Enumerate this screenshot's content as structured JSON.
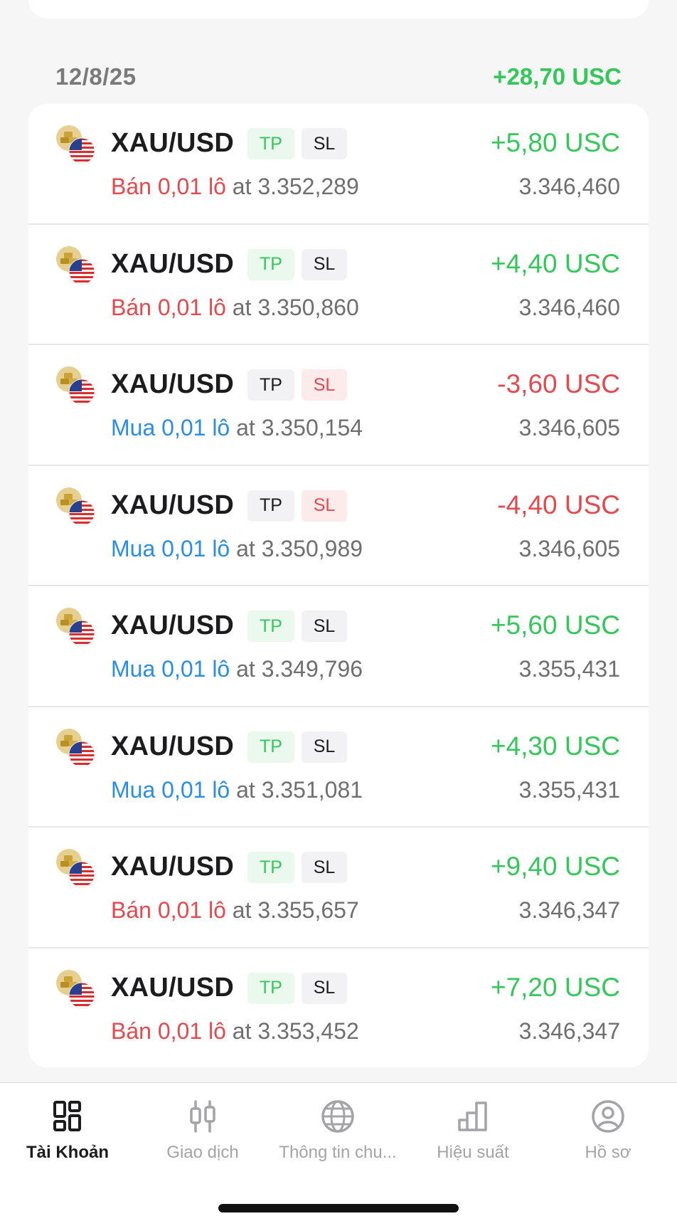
{
  "section": {
    "date": "12/8/25",
    "total": "+28,70 USC"
  },
  "colors": {
    "profit": "#34c759",
    "loss": "#e5484d",
    "sell": "#e5484d",
    "buy": "#2a8ee6",
    "muted": "#6f6f6f"
  },
  "orders": [
    {
      "symbol": "XAU/USD",
      "tp": "TP",
      "sl": "SL",
      "tp_state": "on",
      "sl_state": "off",
      "side": "Bán 0,01 lô",
      "side_type": "sell",
      "at": "at 3.352,289",
      "pnl": "+5,80 USC",
      "pnl_sign": "pos",
      "price": "3.346,460"
    },
    {
      "symbol": "XAU/USD",
      "tp": "TP",
      "sl": "SL",
      "tp_state": "on",
      "sl_state": "off",
      "side": "Bán 0,01 lô",
      "side_type": "sell",
      "at": "at 3.350,860",
      "pnl": "+4,40 USC",
      "pnl_sign": "pos",
      "price": "3.346,460"
    },
    {
      "symbol": "XAU/USD",
      "tp": "TP",
      "sl": "SL",
      "tp_state": "off",
      "sl_state": "on",
      "side": "Mua 0,01 lô",
      "side_type": "buy",
      "at": "at 3.350,154",
      "pnl": "-3,60 USC",
      "pnl_sign": "neg",
      "price": "3.346,605"
    },
    {
      "symbol": "XAU/USD",
      "tp": "TP",
      "sl": "SL",
      "tp_state": "off",
      "sl_state": "on",
      "side": "Mua 0,01 lô",
      "side_type": "buy",
      "at": "at 3.350,989",
      "pnl": "-4,40 USC",
      "pnl_sign": "neg",
      "price": "3.346,605"
    },
    {
      "symbol": "XAU/USD",
      "tp": "TP",
      "sl": "SL",
      "tp_state": "on",
      "sl_state": "off",
      "side": "Mua 0,01 lô",
      "side_type": "buy",
      "at": "at 3.349,796",
      "pnl": "+5,60 USC",
      "pnl_sign": "pos",
      "price": "3.355,431"
    },
    {
      "symbol": "XAU/USD",
      "tp": "TP",
      "sl": "SL",
      "tp_state": "on",
      "sl_state": "off",
      "side": "Mua 0,01 lô",
      "side_type": "buy",
      "at": "at 3.351,081",
      "pnl": "+4,30 USC",
      "pnl_sign": "pos",
      "price": "3.355,431"
    },
    {
      "symbol": "XAU/USD",
      "tp": "TP",
      "sl": "SL",
      "tp_state": "on",
      "sl_state": "off",
      "side": "Bán 0,01 lô",
      "side_type": "sell",
      "at": "at 3.355,657",
      "pnl": "+9,40 USC",
      "pnl_sign": "pos",
      "price": "3.346,347"
    },
    {
      "symbol": "XAU/USD",
      "tp": "TP",
      "sl": "SL",
      "tp_state": "on",
      "sl_state": "off",
      "side": "Bán 0,01 lô",
      "side_type": "sell",
      "at": "at 3.353,452",
      "pnl": "+7,20 USC",
      "pnl_sign": "pos",
      "price": "3.346,347"
    }
  ],
  "tabbar": {
    "items": [
      {
        "label": "Tài Khoản",
        "icon": "dashboard-grid-icon",
        "active": true
      },
      {
        "label": "Giao dịch",
        "icon": "candlestick-icon",
        "active": false
      },
      {
        "label": "Thông tin chu...",
        "icon": "globe-icon",
        "active": false
      },
      {
        "label": "Hiệu suất",
        "icon": "bar-chart-icon",
        "active": false
      },
      {
        "label": "Hồ sơ",
        "icon": "profile-icon",
        "active": false
      }
    ]
  }
}
